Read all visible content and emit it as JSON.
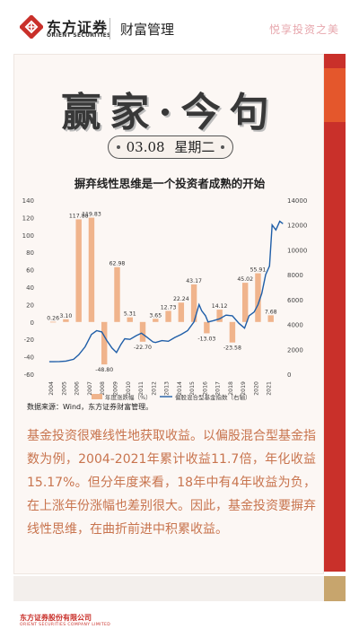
{
  "header": {
    "brand_cn": "东方证券",
    "brand_en": "ORIENT SECURITIES",
    "section": "财富管理",
    "slogan": "悦享投资之美"
  },
  "card": {
    "calligraphy_title": "赢家·今句",
    "date": "03.08",
    "weekday": "星期二"
  },
  "chart_data": {
    "type": "bar+line",
    "title": "摒弃线性思维是一个投资者成熟的开始",
    "categories": [
      "2004",
      "2005",
      "2006",
      "2007",
      "2008",
      "2009",
      "2010",
      "2011",
      "2012",
      "2013",
      "2014",
      "2015",
      "2016",
      "2017",
      "2018",
      "2019",
      "2020",
      "2021"
    ],
    "series": [
      {
        "name": "年度涨跌幅（%）",
        "type": "bar",
        "axis": "left",
        "color": "#f0b48c",
        "values": [
          0.26,
          3.1,
          117.88,
          119.83,
          -48.8,
          62.98,
          5.31,
          -22.7,
          3.65,
          12.73,
          22.24,
          43.17,
          -13.03,
          14.12,
          -23.58,
          45.02,
          55.91,
          7.68
        ],
        "labels": [
          "0.26",
          "3.10",
          "117.88",
          "119.83",
          "-48.80",
          "62.98",
          "5.31",
          "-22.70",
          "3.65",
          "12.73",
          "22.24",
          "43.17",
          "-13.03",
          "14.12",
          "-23.58",
          "45.02",
          "55.91",
          "7.68"
        ]
      },
      {
        "name": "偏股混合型基金指数（右轴）",
        "type": "line",
        "axis": "right",
        "color": "#1f5ea8",
        "x": [
          2003.7,
          2004.0,
          2004.5,
          2005.0,
          2005.6,
          2006.0,
          2006.5,
          2007.0,
          2007.4,
          2007.8,
          2008.2,
          2008.6,
          2008.95,
          2009.3,
          2009.6,
          2010.0,
          2010.5,
          2010.9,
          2011.3,
          2011.8,
          2012.0,
          2012.5,
          2013.0,
          2013.5,
          2014.0,
          2014.5,
          2015.0,
          2015.4,
          2015.6,
          2015.9,
          2016.1,
          2016.5,
          2017.0,
          2017.5,
          2018.0,
          2018.5,
          2018.95,
          2019.3,
          2019.7,
          2020.0,
          2020.3,
          2020.6,
          2020.9,
          2021.1,
          2021.4,
          2021.7,
          2021.95
        ],
        "values": [
          1000,
          1000,
          1020,
          1050,
          1200,
          1560,
          2200,
          3200,
          3500,
          3400,
          2700,
          2100,
          1750,
          2400,
          2850,
          2800,
          3100,
          3300,
          3000,
          2600,
          2550,
          2700,
          2650,
          2950,
          3200,
          3500,
          4200,
          5600,
          5100,
          4700,
          4200,
          4300,
          4450,
          4750,
          4700,
          4100,
          3700,
          4700,
          5000,
          5600,
          6500,
          8000,
          8700,
          12000,
          11600,
          12300,
          12100
        ]
      }
    ],
    "y_left": {
      "min": -60,
      "max": 140,
      "ticks": [
        "-60",
        "-40",
        "-20",
        "0",
        "20",
        "40",
        "60",
        "80",
        "100",
        "120",
        "140"
      ]
    },
    "y_right": {
      "min": 0,
      "max": 14000,
      "ticks": [
        "0",
        "2000",
        "4000",
        "6000",
        "8000",
        "10000",
        "12000",
        "14000"
      ]
    },
    "legend_position": "bottom",
    "gridlines": false
  },
  "source": "数据来源：Wind，东方证券财富管理。",
  "body_text": "基金投资很难线性地获取收益。以偏股混合型基金指数为例，2004-2021年累计收益11.7倍，年化收益15.17%。但分年度来看，18年中有4年收益为负，在上涨年份涨幅也差别很大。因此，基金投资要摒弃线性思维，在曲折前进中积累收益。",
  "footer": {
    "cn": "东方证券股份有限公司",
    "en": "ORIENT SECURITIES COMPANY LIMITED"
  },
  "colors": {
    "brand_red": "#c9302a",
    "bar": "#f0b48c",
    "line": "#1f5ea8",
    "body_text": "#c8744e",
    "gold": "#c7a56d"
  }
}
